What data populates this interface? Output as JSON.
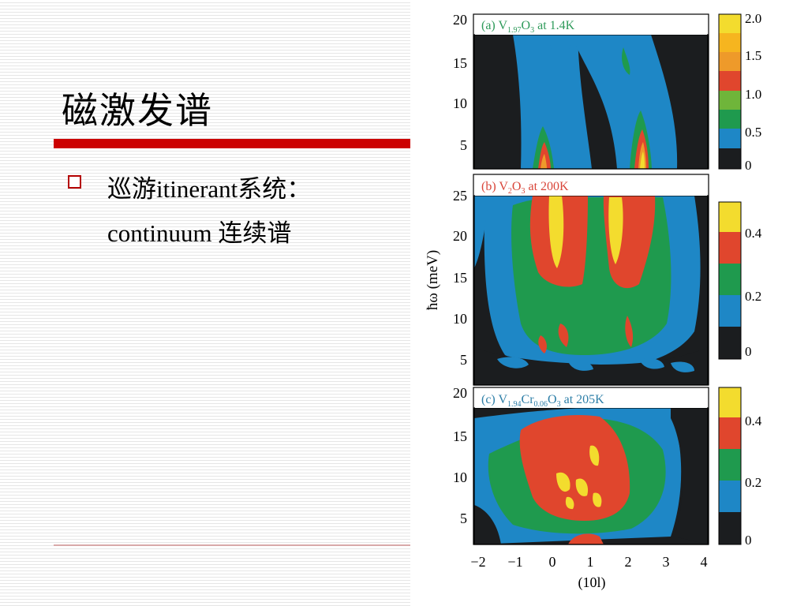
{
  "slide": {
    "title": "磁激发谱",
    "bullet_line1": "巡游itinerant系统：",
    "bullet_line2": "continuum 连续谱"
  },
  "figure": {
    "panels": [
      {
        "label": "(a) V",
        "sub": "1.97",
        "label2": "O",
        "sub2": "3",
        "label3": " at 1.4K",
        "label_color": "#2e9a5a",
        "y_ticks": [
          "20",
          "15",
          "10",
          "5"
        ],
        "cbar_ticks": [
          "2.0",
          "1.5",
          "1.0",
          "0.5",
          "0"
        ]
      },
      {
        "label": "(b) V",
        "sub": "2",
        "label2": "O",
        "sub2": "3",
        "label3": " at 200K",
        "label_color": "#d9463a",
        "y_ticks": [
          "25",
          "20",
          "15",
          "10",
          "5"
        ],
        "cbar_ticks": [
          "0.4",
          "0.2",
          "0"
        ]
      },
      {
        "label": "(c) V",
        "sub": "1.94",
        "label2": "Cr",
        "sub2": "0.06",
        "label3": "O",
        "sub3": "3",
        "label4": " at 205K",
        "label_color": "#2e7fa8",
        "y_ticks": [
          "20",
          "15",
          "10",
          "5"
        ],
        "cbar_ticks": [
          "0.4",
          "0.2",
          "0"
        ]
      }
    ],
    "y_axis_label": "ħω (meV)",
    "x_ticks": [
      "−2",
      "−1",
      "0",
      "1",
      "2",
      "3",
      "4"
    ],
    "x_axis_label": "(10l)",
    "colors": {
      "c0": "#1b1d1f",
      "c1": "#1e87c6",
      "c2": "#1f9a4e",
      "c3": "#6fb53a",
      "c4": "#e0462d",
      "c5": "#ee9a2a",
      "c6": "#f3dc2e"
    }
  }
}
